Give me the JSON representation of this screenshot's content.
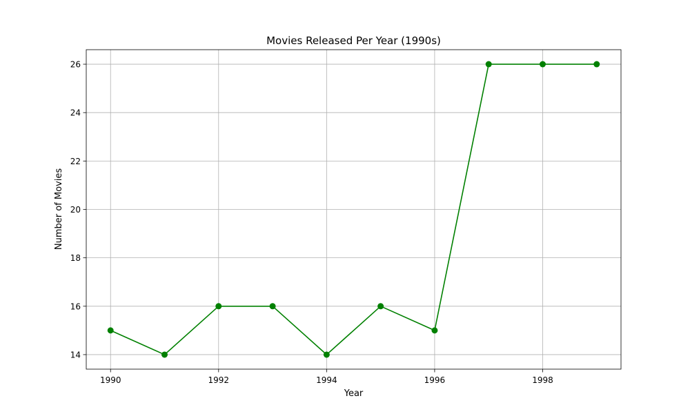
{
  "chart_data": {
    "type": "line",
    "title": "Movies Released Per Year (1990s)",
    "xlabel": "Year",
    "ylabel": "Number of Movies",
    "x": [
      1990,
      1991,
      1992,
      1993,
      1994,
      1995,
      1996,
      1997,
      1998,
      1999
    ],
    "series": [
      {
        "values": [
          15,
          14,
          16,
          16,
          14,
          16,
          15,
          26,
          26,
          26
        ],
        "color": "#008000",
        "marker": "circle"
      }
    ],
    "xlim": [
      1989.55,
      1999.45
    ],
    "ylim": [
      13.4,
      26.6
    ],
    "xticks": [
      1990,
      1992,
      1994,
      1996,
      1998
    ],
    "yticks": [
      14,
      16,
      18,
      20,
      22,
      24,
      26
    ],
    "grid": true,
    "grid_color": "#b0b0b0"
  }
}
